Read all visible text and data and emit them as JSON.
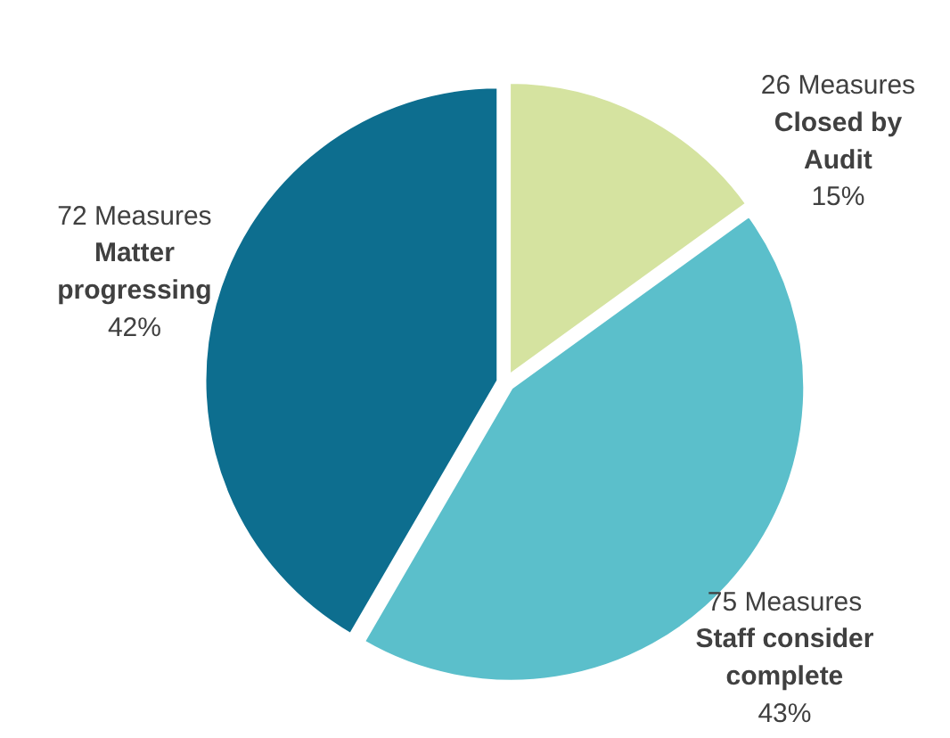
{
  "chart_data": {
    "type": "pie",
    "categories": [
      "Closed by Audit",
      "Staff consider complete",
      "Matter progressing"
    ],
    "values": [
      26,
      75,
      72
    ],
    "colors": [
      "#d5e3a0",
      "#5bbfcb",
      "#0d6e8f"
    ],
    "value_labels": [
      "26 Measures",
      "75 Measures",
      "72 Measures"
    ],
    "annotations": [
      "15%",
      "43%",
      "42%"
    ]
  }
}
